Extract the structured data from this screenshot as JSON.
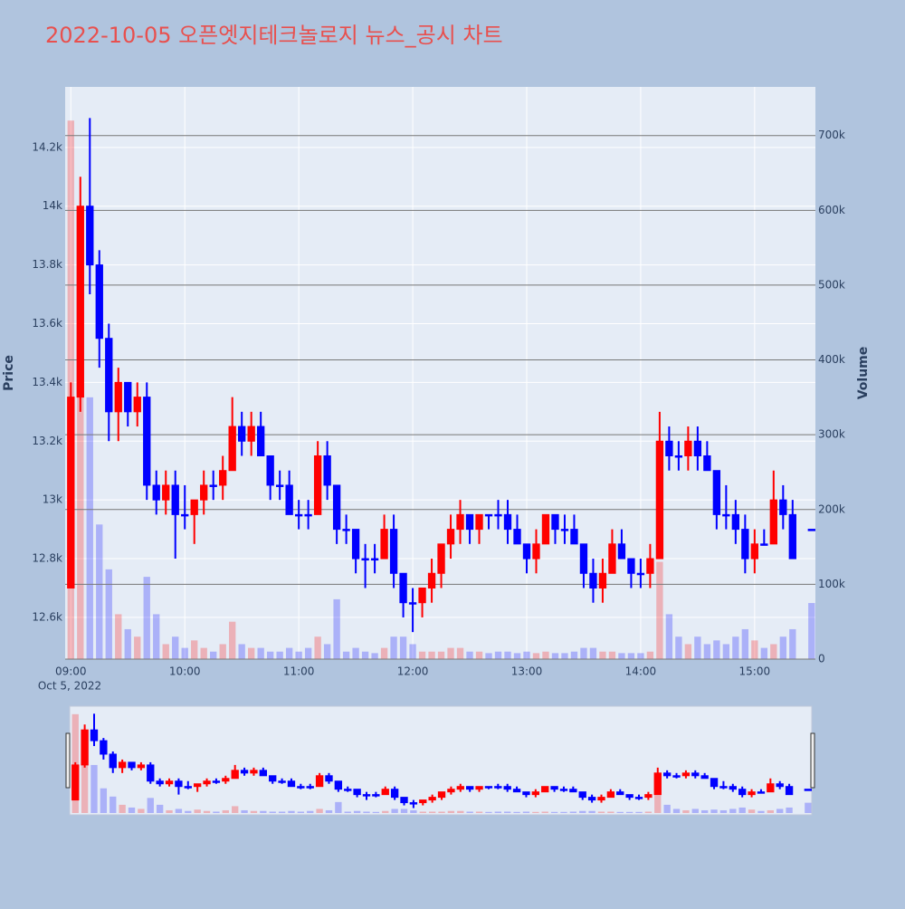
{
  "chart_data": {
    "type": "candlestick",
    "title": "2022-10-05 오픈엣지테크놀로지 뉴스_공시 차트",
    "y_label": "Price",
    "y2_label": "Volume",
    "x_date_label": "Oct 5, 2022",
    "increasing_color": "#ff0000",
    "decreasing_color": "#0000ff",
    "x": [
      "2022-10-05 09:00",
      "2022-10-05 09:05",
      "2022-10-05 09:10",
      "2022-10-05 09:15",
      "2022-10-05 09:20",
      "2022-10-05 09:25",
      "2022-10-05 09:30",
      "2022-10-05 09:35",
      "2022-10-05 09:40",
      "2022-10-05 09:45",
      "2022-10-05 09:50",
      "2022-10-05 09:55",
      "2022-10-05 10:00",
      "2022-10-05 10:05",
      "2022-10-05 10:10",
      "2022-10-05 10:15",
      "2022-10-05 10:20",
      "2022-10-05 10:25",
      "2022-10-05 10:30",
      "2022-10-05 10:35",
      "2022-10-05 10:40",
      "2022-10-05 10:45",
      "2022-10-05 10:50",
      "2022-10-05 10:55",
      "2022-10-05 11:00",
      "2022-10-05 11:05",
      "2022-10-05 11:10",
      "2022-10-05 11:15",
      "2022-10-05 11:20",
      "2022-10-05 11:25",
      "2022-10-05 11:30",
      "2022-10-05 11:35",
      "2022-10-05 11:40",
      "2022-10-05 11:45",
      "2022-10-05 11:50",
      "2022-10-05 11:55",
      "2022-10-05 12:00",
      "2022-10-05 12:05",
      "2022-10-05 12:10",
      "2022-10-05 12:15",
      "2022-10-05 12:20",
      "2022-10-05 12:25",
      "2022-10-05 12:30",
      "2022-10-05 12:35",
      "2022-10-05 12:40",
      "2022-10-05 12:45",
      "2022-10-05 12:50",
      "2022-10-05 12:55",
      "2022-10-05 13:00",
      "2022-10-05 13:05",
      "2022-10-05 13:10",
      "2022-10-05 13:15",
      "2022-10-05 13:20",
      "2022-10-05 13:25",
      "2022-10-05 13:30",
      "2022-10-05 13:35",
      "2022-10-05 13:40",
      "2022-10-05 13:45",
      "2022-10-05 13:50",
      "2022-10-05 13:55",
      "2022-10-05 14:00",
      "2022-10-05 14:05",
      "2022-10-05 14:10",
      "2022-10-05 14:15",
      "2022-10-05 14:20",
      "2022-10-05 14:25",
      "2022-10-05 14:30",
      "2022-10-05 14:35",
      "2022-10-05 14:40",
      "2022-10-05 14:45",
      "2022-10-05 14:50",
      "2022-10-05 14:55",
      "2022-10-05 15:00",
      "2022-10-05 15:05",
      "2022-10-05 15:10",
      "2022-10-05 15:15",
      "2022-10-05 15:20",
      "2022-10-05 15:30"
    ],
    "open": [
      12700,
      13350,
      14000,
      13800,
      13550,
      13300,
      13400,
      13300,
      13350,
      13050,
      13000,
      13050,
      12950,
      12950,
      13000,
      13050,
      13050,
      13100,
      13250,
      13200,
      13250,
      13150,
      13050,
      13050,
      12950,
      12950,
      12950,
      13150,
      13050,
      12900,
      12900,
      12800,
      12800,
      12800,
      12900,
      12750,
      12650,
      12650,
      12700,
      12750,
      12850,
      12900,
      12950,
      12900,
      12950,
      12950,
      12950,
      12900,
      12850,
      12800,
      12850,
      12950,
      12900,
      12900,
      12850,
      12750,
      12700,
      12750,
      12850,
      12800,
      12750,
      12750,
      12800,
      13200,
      13150,
      13150,
      13200,
      13150,
      13100,
      12950,
      12950,
      12900,
      12800,
      12850,
      12850,
      13000,
      12950,
      12900
    ],
    "high": [
      13400,
      14100,
      14300,
      13850,
      13600,
      13450,
      13400,
      13400,
      13400,
      13100,
      13100,
      13100,
      13050,
      13000,
      13100,
      13100,
      13150,
      13350,
      13300,
      13300,
      13300,
      13150,
      13100,
      13100,
      13000,
      13000,
      13200,
      13200,
      13050,
      12950,
      12900,
      12850,
      12850,
      12950,
      12950,
      12750,
      12700,
      12700,
      12800,
      12850,
      12950,
      13000,
      12950,
      12950,
      12950,
      13000,
      13000,
      12950,
      12850,
      12900,
      12950,
      12950,
      12950,
      12950,
      12850,
      12800,
      12800,
      12900,
      12900,
      12800,
      12800,
      12850,
      13300,
      13250,
      13200,
      13250,
      13250,
      13200,
      13100,
      13050,
      13000,
      12950,
      12900,
      12900,
      13100,
      13050,
      13000,
      12900
    ],
    "low": [
      12700,
      13300,
      13700,
      13450,
      13200,
      13200,
      13250,
      13250,
      13000,
      12950,
      12950,
      12800,
      12900,
      12850,
      12950,
      13000,
      13000,
      13100,
      13150,
      13150,
      13150,
      13000,
      13000,
      12950,
      12900,
      12900,
      12950,
      13000,
      12850,
      12850,
      12750,
      12700,
      12750,
      12800,
      12700,
      12600,
      12550,
      12600,
      12650,
      12700,
      12800,
      12850,
      12850,
      12850,
      12900,
      12900,
      12850,
      12850,
      12750,
      12750,
      12850,
      12850,
      12850,
      12850,
      12700,
      12650,
      12650,
      12750,
      12800,
      12700,
      12700,
      12700,
      12800,
      13100,
      13100,
      13100,
      13100,
      13100,
      12900,
      12900,
      12850,
      12750,
      12750,
      12850,
      12850,
      12900,
      12800,
      12900
    ],
    "close": [
      13350,
      14000,
      13800,
      13550,
      13300,
      13400,
      13300,
      13350,
      13050,
      13000,
      13050,
      12950,
      12950,
      13000,
      13050,
      13050,
      13100,
      13250,
      13200,
      13250,
      13150,
      13050,
      13050,
      12950,
      12950,
      12950,
      13150,
      13050,
      12900,
      12900,
      12800,
      12800,
      12800,
      12900,
      12750,
      12650,
      12650,
      12700,
      12750,
      12850,
      12900,
      12950,
      12900,
      12950,
      12950,
      12950,
      12900,
      12850,
      12800,
      12850,
      12950,
      12900,
      12900,
      12850,
      12750,
      12700,
      12750,
      12850,
      12800,
      12750,
      12750,
      12800,
      13200,
      13150,
      13150,
      13200,
      13150,
      13100,
      12950,
      12950,
      12900,
      12800,
      12850,
      12850,
      13000,
      12950,
      12800,
      12900
    ],
    "volume": [
      720000,
      450000,
      350000,
      180000,
      120000,
      60000,
      40000,
      30000,
      110000,
      60000,
      20000,
      30000,
      15000,
      25000,
      15000,
      10000,
      20000,
      50000,
      20000,
      15000,
      15000,
      10000,
      10000,
      15000,
      10000,
      15000,
      30000,
      20000,
      80000,
      10000,
      15000,
      10000,
      8000,
      15000,
      30000,
      30000,
      20000,
      10000,
      10000,
      10000,
      15000,
      15000,
      10000,
      10000,
      8000,
      10000,
      10000,
      8000,
      10000,
      8000,
      10000,
      8000,
      8000,
      10000,
      15000,
      15000,
      10000,
      10000,
      8000,
      8000,
      8000,
      10000,
      130000,
      60000,
      30000,
      20000,
      30000,
      20000,
      25000,
      20000,
      30000,
      40000,
      25000,
      15000,
      20000,
      30000,
      40000,
      75000
    ],
    "xlim": [
      "2022-10-05 08:57",
      "2022-10-05 15:32"
    ],
    "xticks": [
      {
        "value": "2022-10-05 09:00",
        "label": "09:00"
      },
      {
        "value": "2022-10-05 10:00",
        "label": "10:00"
      },
      {
        "value": "2022-10-05 11:00",
        "label": "11:00"
      },
      {
        "value": "2022-10-05 12:00",
        "label": "12:00"
      },
      {
        "value": "2022-10-05 13:00",
        "label": "13:00"
      },
      {
        "value": "2022-10-05 14:00",
        "label": "14:00"
      },
      {
        "value": "2022-10-05 15:00",
        "label": "15:00"
      }
    ],
    "ylim": [
      12458,
      14406
    ],
    "yticks": [
      {
        "value": 12600,
        "label": "12.6k"
      },
      {
        "value": 12800,
        "label": "12.8k"
      },
      {
        "value": 13000,
        "label": "13k"
      },
      {
        "value": 13200,
        "label": "13.2k"
      },
      {
        "value": 13400,
        "label": "13.4k"
      },
      {
        "value": 13600,
        "label": "13.6k"
      },
      {
        "value": 13800,
        "label": "13.8k"
      },
      {
        "value": 14000,
        "label": "14k"
      },
      {
        "value": 14200,
        "label": "14.2k"
      }
    ],
    "y2lim": [
      0,
      765000
    ],
    "y2ticks": [
      0,
      {
        "value": 100000,
        "label": "100k"
      },
      {
        "value": 200000,
        "label": "200k"
      },
      {
        "value": 300000,
        "label": "300k"
      },
      {
        "value": 400000,
        "label": "400k"
      },
      {
        "value": 500000,
        "label": "500k"
      },
      {
        "value": 600000,
        "label": "600k"
      },
      {
        "value": 700000,
        "label": "700k"
      }
    ],
    "grid": true,
    "range_slider": true
  }
}
